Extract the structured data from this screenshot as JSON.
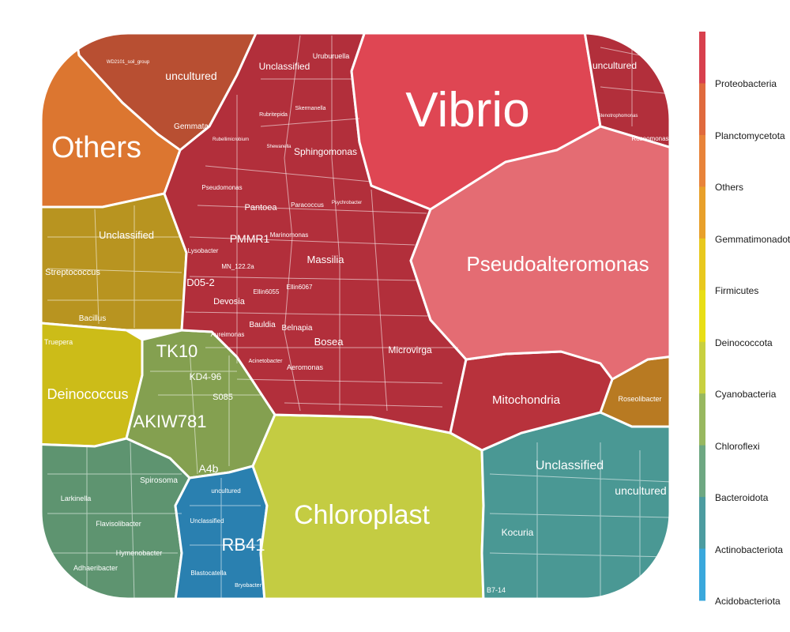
{
  "chart_data": {
    "type": "voronoi-treemap",
    "title": "",
    "legend": {
      "placement": "right",
      "entries": [
        {
          "name": "Proteobacteria",
          "color": "#d8404d"
        },
        {
          "name": "Planctomycetota",
          "color": "#e06a3e"
        },
        {
          "name": "Others",
          "color": "#e8833a"
        },
        {
          "name": "Gemmatimonadota",
          "color": "#e8a02a"
        },
        {
          "name": "Firmicutes",
          "color": "#e8c81e"
        },
        {
          "name": "Deinococcota",
          "color": "#e8de16"
        },
        {
          "name": "Cyanobacteria",
          "color": "#c8d040"
        },
        {
          "name": "Chloroflexi",
          "color": "#98b860"
        },
        {
          "name": "Bacteroidota",
          "color": "#6ea882"
        },
        {
          "name": "Actinobacteriota",
          "color": "#4c9ca0"
        },
        {
          "name": "Acidobacteriota",
          "color": "#3aa8dc"
        }
      ]
    },
    "cells": [
      {
        "label": "Vibrio",
        "phylum": "Proteobacteria",
        "color": "#df4653"
      },
      {
        "label": "Pseudoalteromonas",
        "phylum": "Proteobacteria",
        "color": "#e46c73"
      },
      {
        "label": "Chloroplast",
        "phylum": "Cyanobacteria",
        "color": "#c4cc42"
      },
      {
        "label": "Others",
        "phylum": "Others",
        "color": "#dc7630"
      },
      {
        "label": "Deinococcus",
        "phylum": "Deinococcota",
        "color": "#ccbc18"
      },
      {
        "label": "AKIW781",
        "phylum": "Chloroflexi",
        "color": "#84a050"
      },
      {
        "label": "TK10",
        "phylum": "Chloroflexi",
        "color": "#84a050"
      },
      {
        "label": "RB41",
        "phylum": "Acidobacteriota",
        "color": "#2a80b0"
      },
      {
        "label": "Mitochondria",
        "phylum": "Proteobacteria",
        "color": "#b8323c"
      },
      {
        "label": "Unclassified",
        "phylum": "Actinobacteriota",
        "color": "#4a9894"
      },
      {
        "label": "uncultured",
        "phylum": "Actinobacteriota",
        "color": "#4a9894"
      },
      {
        "label": "Kocuria",
        "phylum": "Actinobacteriota",
        "color": "#408884"
      },
      {
        "label": "Unclassified",
        "phylum": "Firmicutes",
        "color": "#b89420"
      },
      {
        "label": "Streptococcus",
        "phylum": "Firmicutes",
        "color": "#b89420"
      },
      {
        "label": "Bacillus",
        "phylum": "Firmicutes",
        "color": "#b89420"
      },
      {
        "label": "uncultured",
        "phylum": "Gemmatimonadota",
        "color": "#b84f32"
      },
      {
        "label": "Gemmata",
        "phylum": "Planctomycetota",
        "color": "#b84f32"
      },
      {
        "label": "uncultured",
        "phylum": "Proteobacteria",
        "color": "#b22f3b"
      },
      {
        "label": "Unclassified",
        "phylum": "Proteobacteria",
        "color": "#b22f3b"
      },
      {
        "label": "Massilia",
        "phylum": "Proteobacteria",
        "color": "#b22f3b"
      },
      {
        "label": "PMMR1",
        "phylum": "Proteobacteria",
        "color": "#b22f3b"
      },
      {
        "label": "Bosea",
        "phylum": "Proteobacteria",
        "color": "#b22f3b"
      },
      {
        "label": "Microvirga",
        "phylum": "Proteobacteria",
        "color": "#b22f3b"
      },
      {
        "label": "Sphingomonas",
        "phylum": "Proteobacteria",
        "color": "#b22f3b"
      },
      {
        "label": "Devosia",
        "phylum": "Proteobacteria",
        "color": "#b22f3b"
      },
      {
        "label": "Pantoea",
        "phylum": "Proteobacteria",
        "color": "#b22f3b"
      },
      {
        "label": "Bauldia",
        "phylum": "Proteobacteria",
        "color": "#b22f3b"
      },
      {
        "label": "Belnapia",
        "phylum": "Proteobacteria",
        "color": "#b22f3b"
      },
      {
        "label": "Aeromonas",
        "phylum": "Proteobacteria",
        "color": "#b22f3b"
      },
      {
        "label": "D05-2",
        "phylum": "Proteobacteria",
        "color": "#b22f3b"
      },
      {
        "label": "Marinomonas",
        "phylum": "Proteobacteria",
        "color": "#b22f3b"
      },
      {
        "label": "Paracoccus",
        "phylum": "Proteobacteria",
        "color": "#b22f3b"
      },
      {
        "label": "Uruburuella",
        "phylum": "Proteobacteria",
        "color": "#b22f3b"
      },
      {
        "label": "Pseudomonas",
        "phylum": "Proteobacteria",
        "color": "#b22f3b"
      },
      {
        "label": "Lysobacter",
        "phylum": "Proteobacteria",
        "color": "#b22f3b"
      },
      {
        "label": "Roseolibacter",
        "phylum": "Planctomycetota",
        "color": "#b87a22"
      },
      {
        "label": "Spirosoma",
        "phylum": "Bacteroidota",
        "color": "#5e9470"
      },
      {
        "label": "Larkinella",
        "phylum": "Bacteroidota",
        "color": "#5e9470"
      },
      {
        "label": "Flavisolibacter",
        "phylum": "Bacteroidota",
        "color": "#5e9470"
      },
      {
        "label": "Hymenobacter",
        "phylum": "Bacteroidota",
        "color": "#5e9470"
      },
      {
        "label": "Adhaeribacter",
        "phylum": "Bacteroidota",
        "color": "#5e9470"
      },
      {
        "label": "Blastocatella",
        "phylum": "Acidobacteriota",
        "color": "#2a80b0"
      },
      {
        "label": "Unclassified",
        "phylum": "Acidobacteriota",
        "color": "#2a80b0"
      },
      {
        "label": "uncultured",
        "phylum": "Acidobacteriota",
        "color": "#2a80b0"
      },
      {
        "label": "Truepera",
        "phylum": "Deinococcota",
        "color": "#ccbc18"
      },
      {
        "label": "A4b",
        "phylum": "Chloroflexi",
        "color": "#84a050"
      },
      {
        "label": "KD4-96",
        "phylum": "Chloroflexi",
        "color": "#84a050"
      },
      {
        "label": "S085",
        "phylum": "Chloroflexi",
        "color": "#84a050"
      },
      {
        "label": "Ellin6055",
        "phylum": "Proteobacteria",
        "color": "#b22f3b"
      },
      {
        "label": "Ellin6067",
        "phylum": "Proteobacteria",
        "color": "#b22f3b"
      },
      {
        "label": "MN_122.2a",
        "phylum": "Proteobacteria",
        "color": "#b22f3b"
      },
      {
        "label": "Aureimonas",
        "phylum": "Proteobacteria",
        "color": "#b22f3b"
      },
      {
        "label": "Acinetobacter",
        "phylum": "Proteobacteria",
        "color": "#b22f3b"
      },
      {
        "label": "Rubritepida",
        "phylum": "Proteobacteria",
        "color": "#b22f3b"
      },
      {
        "label": "Skermanella",
        "phylum": "Proteobacteria",
        "color": "#b22f3b"
      },
      {
        "label": "Shewanella",
        "phylum": "Proteobacteria",
        "color": "#b22f3b"
      },
      {
        "label": "Rubellimicrobium",
        "phylum": "Proteobacteria",
        "color": "#b22f3b"
      },
      {
        "label": "Psychrobacter",
        "phylum": "Proteobacteria",
        "color": "#b22f3b"
      },
      {
        "label": "Stenotrophomonas",
        "phylum": "Proteobacteria",
        "color": "#b22f3b"
      },
      {
        "label": "Roseomonas",
        "phylum": "Proteobacteria",
        "color": "#b22f3b"
      },
      {
        "label": "Bryobacter",
        "phylum": "Acidobacteriota",
        "color": "#2a80b0"
      },
      {
        "label": "B7-14",
        "phylum": "Actinobacteriota",
        "color": "#408884"
      },
      {
        "label": "WD2101_soil_group",
        "phylum": "Planctomycetota",
        "color": "#b84f32"
      }
    ]
  }
}
